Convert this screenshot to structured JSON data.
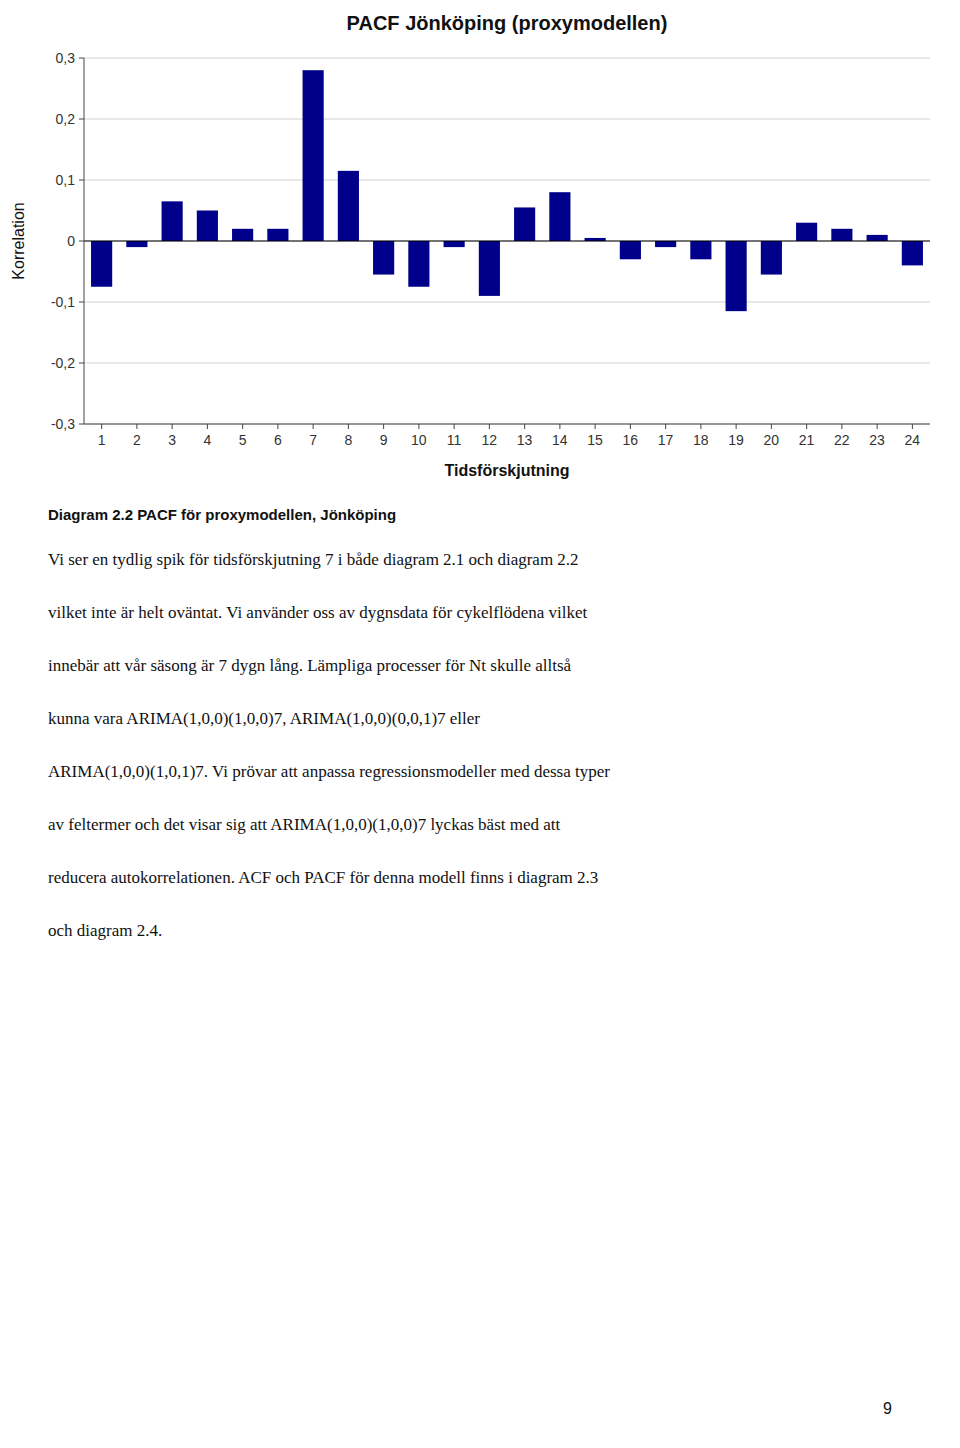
{
  "chart_data": {
    "type": "bar",
    "title": "PACF Jönköping (proxymodellen)",
    "xlabel": "Tidsförskjutning",
    "ylabel": "Korrelation",
    "categories": [
      1,
      2,
      3,
      4,
      5,
      6,
      7,
      8,
      9,
      10,
      11,
      12,
      13,
      14,
      15,
      16,
      17,
      18,
      19,
      20,
      21,
      22,
      23,
      24
    ],
    "values": [
      -0.075,
      -0.01,
      0.065,
      0.05,
      0.02,
      0.02,
      0.28,
      0.115,
      -0.055,
      -0.075,
      -0.01,
      -0.09,
      0.055,
      0.08,
      0.005,
      -0.03,
      -0.01,
      -0.03,
      -0.115,
      -0.055,
      0.03,
      0.02,
      0.01,
      -0.04
    ],
    "color": "#00008B",
    "ylim": [
      -0.3,
      0.3
    ],
    "yticks": [
      {
        "value": -0.3,
        "label": "-0,3"
      },
      {
        "value": -0.2,
        "label": "-0,2"
      },
      {
        "value": -0.1,
        "label": "-0,1"
      },
      0,
      {
        "value": 0.1,
        "label": "0,1"
      },
      {
        "value": 0.2,
        "label": "0,2"
      },
      {
        "value": 0.3,
        "label": "0,3"
      }
    ],
    "grid": true
  },
  "caption": "Diagram 2.2 PACF för proxymodellen, Jönköping",
  "body_lines": [
    "Vi ser en tydlig spik för tidsförskjutning 7 i både diagram 2.1 och diagram 2.2",
    "vilket inte är helt oväntat. Vi använder oss av dygnsdata för cykelflödena vilket",
    "innebär att vår säsong är 7 dygn lång. Lämpliga processer för Nt skulle alltså",
    "kunna vara ARIMA(1,0,0)(1,0,0)7, ARIMA(1,0,0)(0,0,1)7 eller",
    "ARIMA(1,0,0)(1,0,1)7. Vi prövar att anpassa regressionsmodeller med dessa typer",
    "av feltermer och det visar sig att ARIMA(1,0,0)(1,0,0)7 lyckas bäst med att",
    "reducera autokorrelationen. ACF och PACF för denna modell finns i diagram 2.3",
    "och diagram 2.4."
  ],
  "page_number": "9"
}
